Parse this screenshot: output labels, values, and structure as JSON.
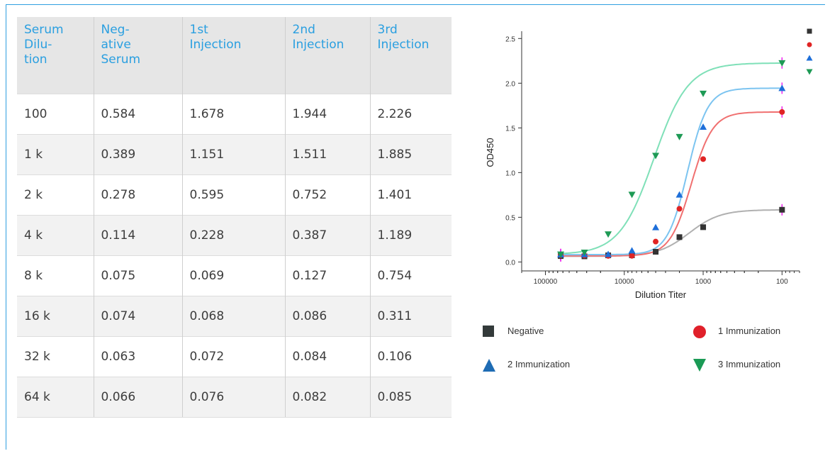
{
  "table": {
    "headers": [
      [
        "Serum",
        "Dilu-",
        "tion"
      ],
      [
        "Neg-",
        "ative",
        "Serum"
      ],
      [
        "1st",
        "Injection"
      ],
      [
        "2nd",
        "Injection"
      ],
      [
        "3rd",
        "Injection"
      ]
    ],
    "rows": [
      [
        "100",
        "0.584",
        "1.678",
        "1.944",
        "2.226"
      ],
      [
        "1 k",
        "0.389",
        "1.151",
        "1.511",
        "1.885"
      ],
      [
        "2 k",
        "0.278",
        "0.595",
        "0.752",
        "1.401"
      ],
      [
        "4 k",
        "0.114",
        "0.228",
        "0.387",
        "1.189"
      ],
      [
        "8 k",
        "0.075",
        "0.069",
        "0.127",
        "0.754"
      ],
      [
        "16 k",
        "0.074",
        "0.068",
        "0.086",
        "0.311"
      ],
      [
        "32 k",
        "0.063",
        "0.072",
        "0.084",
        "0.106"
      ],
      [
        "64 k",
        "0.066",
        "0.076",
        "0.082",
        "0.085"
      ]
    ]
  },
  "chart_data": {
    "type": "scatter",
    "xlabel": "Dilution Titer",
    "ylabel": "OD450",
    "x_scale": "log-reversed",
    "xlim": [
      200000,
      60
    ],
    "ylim": [
      -0.1,
      2.55
    ],
    "x_ticks": [
      100000,
      10000,
      1000,
      100
    ],
    "x_tick_labels": [
      "100000",
      "10000",
      "1000",
      "100"
    ],
    "y_ticks": [
      0.0,
      0.5,
      1.0,
      1.5,
      2.0,
      2.5
    ],
    "y_tick_labels": [
      "0.0",
      "0.5",
      "1.0",
      "1.5",
      "2.0",
      "2.5"
    ],
    "x": [
      100,
      1000,
      2000,
      4000,
      8000,
      16000,
      32000,
      64000
    ],
    "series": [
      {
        "name": "Negative",
        "marker": "square",
        "color": "#333333",
        "curve_color": "#b0b0b0",
        "values": [
          0.584,
          0.389,
          0.278,
          0.114,
          0.075,
          0.074,
          0.063,
          0.066
        ]
      },
      {
        "name": "1 Immunization",
        "marker": "circle",
        "color": "#e02424",
        "curve_color": "#f07070",
        "values": [
          1.678,
          1.151,
          0.595,
          0.228,
          0.069,
          0.068,
          0.072,
          0.076
        ]
      },
      {
        "name": "2 Immunization",
        "marker": "triangle-up",
        "color": "#1e6fd9",
        "curve_color": "#7cc4f0",
        "values": [
          1.944,
          1.511,
          0.752,
          0.387,
          0.127,
          0.086,
          0.084,
          0.082
        ]
      },
      {
        "name": "3 Immunization",
        "marker": "triangle-down",
        "color": "#1e9a55",
        "curve_color": "#7fe0b8",
        "values": [
          2.226,
          1.885,
          1.401,
          1.189,
          0.754,
          0.311,
          0.106,
          0.085
        ]
      }
    ],
    "legend_items": [
      "Negative",
      "1 Immunization",
      "2 Immunization",
      "3 Immunization"
    ],
    "legend_colors": [
      "#333a3a",
      "#e0202a",
      "#1e6cb4",
      "#1a9a55"
    ]
  }
}
